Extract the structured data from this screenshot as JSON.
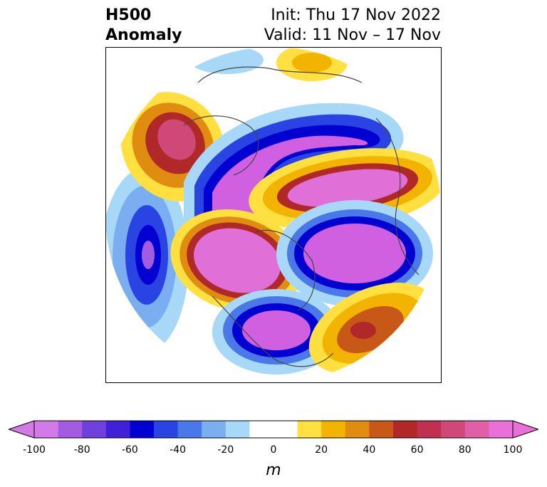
{
  "title": {
    "left_line1": "H500",
    "left_line2": "Anomaly",
    "right_line1": "Init: Thu 17 Nov 2022",
    "right_line2": "Valid: 11 Nov – 17 Nov"
  },
  "colorbar": {
    "unit": "m",
    "ticks": [
      "-100",
      "-80",
      "-60",
      "-40",
      "-20",
      "0",
      "20",
      "40",
      "60",
      "80",
      "100"
    ],
    "colors": [
      "#d47ae8",
      "#a35ce0",
      "#7040dc",
      "#4020d8",
      "#0000d0",
      "#2a44e4",
      "#4a78e8",
      "#7aaef0",
      "#a8d8f8",
      "#ffffff",
      "#ffffff",
      "#ffe040",
      "#f2b400",
      "#e08c10",
      "#c85818",
      "#b02828",
      "#c03050",
      "#d04878",
      "#e060a8",
      "#e870d8"
    ],
    "min": -100,
    "max": 100
  },
  "map": {
    "projection": "polar stereographic (north)",
    "palette_anomaly": {
      "neg_core": "#d060e0",
      "neg_mid": "#0000d0",
      "neg_edge": "#a8d8f8",
      "pos_core": "#e070d8",
      "pos_mid": "#b02828",
      "pos_edge": "#ffe040"
    }
  }
}
